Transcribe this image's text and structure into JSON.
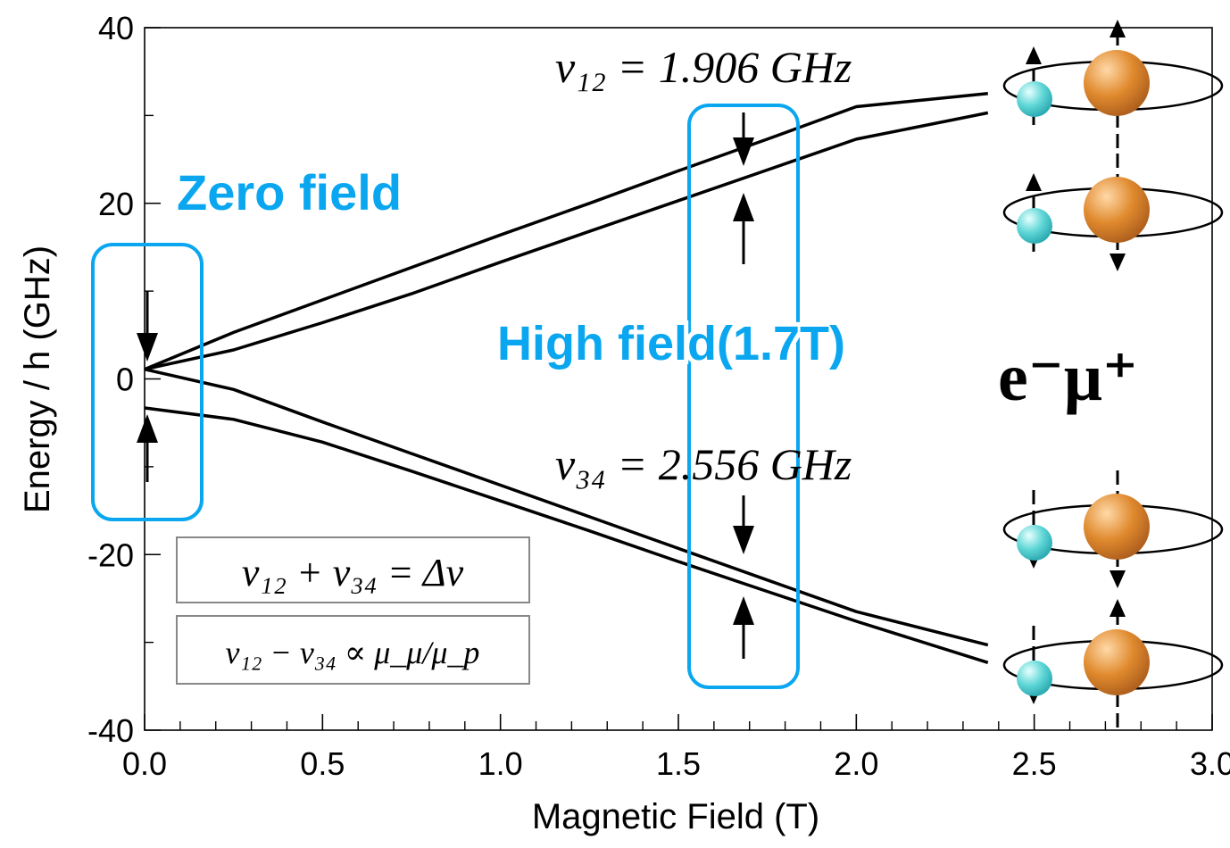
{
  "chart_data": {
    "type": "line",
    "xlabel": "Magnetic Field (T)",
    "ylabel": "Energy / h (GHz)",
    "xlim": [
      0.0,
      3.0
    ],
    "ylim": [
      -40,
      40
    ],
    "x_ticks": [
      "0.0",
      "0.5",
      "1.0",
      "1.5",
      "2.0",
      "2.5",
      "3.0"
    ],
    "y_ticks": [
      "40",
      "20",
      "0",
      "-20",
      "-40"
    ],
    "grid": false,
    "series": [
      {
        "x": [
          0.0,
          0.25,
          0.5,
          0.75,
          1.0,
          1.25,
          1.5,
          1.75,
          2.0,
          2.37
        ],
        "values": [
          1.1,
          5.3,
          9.0,
          12.7,
          16.4,
          20.0,
          23.7,
          27.3,
          31.0,
          32.5
        ]
      },
      {
        "x": [
          0.0,
          0.25,
          0.5,
          0.75,
          1.0,
          1.25,
          1.5,
          1.75,
          2.0,
          2.37
        ],
        "values": [
          1.1,
          3.3,
          6.4,
          9.7,
          13.3,
          16.8,
          20.3,
          23.8,
          27.3,
          30.3
        ]
      },
      {
        "x": [
          0.0,
          0.25,
          0.5,
          0.75,
          1.0,
          1.25,
          1.5,
          1.75,
          2.0,
          2.37
        ],
        "values": [
          1.1,
          -1.2,
          -4.9,
          -8.5,
          -12.1,
          -15.7,
          -19.3,
          -22.9,
          -26.5,
          -30.3
        ]
      },
      {
        "x": [
          0.0,
          0.25,
          0.5,
          0.75,
          1.0,
          1.25,
          1.5,
          1.75,
          2.0,
          2.37
        ],
        "values": [
          -3.3,
          -4.6,
          -7.2,
          -10.5,
          -13.9,
          -17.3,
          -20.8,
          -24.2,
          -27.6,
          -32.3
        ]
      }
    ],
    "annotations": {
      "zero_field": "Zero field",
      "high_field": "High field(1.7T)",
      "nu12": "ν₁₂ = 1.906 GHz",
      "nu34": "ν₃₄ = 2.556 GHz",
      "relation1": "ν₁₂ + ν₃₄ = Δν",
      "relation2": "ν₁₂ − ν₃₄ ∝ μ_μ/μ_p",
      "system": "e⁻μ⁺"
    },
    "colors": {
      "annotation": "#0aa7f0",
      "lines": "#000000",
      "electron": "#5fd6d6",
      "muon": "#e08a2e"
    }
  }
}
